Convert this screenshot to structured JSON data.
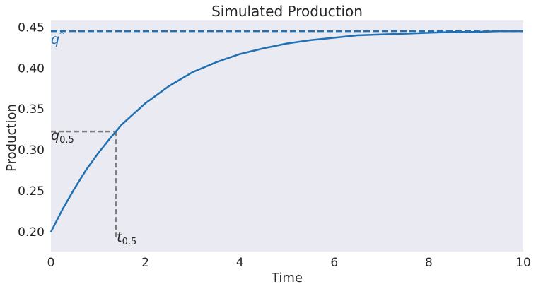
{
  "chart_data": {
    "type": "line",
    "title": "Simulated Production",
    "xlabel": "Time",
    "ylabel": "Production",
    "xlim": [
      0,
      10
    ],
    "ylim": [
      0.176,
      0.458
    ],
    "xticks": [
      "0",
      "2",
      "4",
      "6",
      "8",
      "10"
    ],
    "yticks": [
      "0.20",
      "0.25",
      "0.30",
      "0.35",
      "0.40",
      "0.45"
    ],
    "grid": false,
    "colors": {
      "line": "#2070b4",
      "dashed": "#808080",
      "background": "#eaeaf2"
    },
    "series": [
      {
        "x": [
          0,
          0.25,
          0.5,
          0.75,
          1,
          1.25,
          1.5,
          2,
          2.5,
          3,
          3.5,
          4,
          4.5,
          5,
          5.5,
          6,
          6.5,
          7,
          7.5,
          8,
          8.5,
          9,
          9.5,
          10
        ],
        "y": [
          0.2,
          0.228,
          0.253,
          0.276,
          0.296,
          0.314,
          0.331,
          0.357,
          0.378,
          0.395,
          0.407,
          0.417,
          0.424,
          0.43,
          0.434,
          0.437,
          0.44,
          0.441,
          0.442,
          0.443,
          0.444,
          0.444,
          0.445,
          0.445
        ]
      }
    ],
    "reference_lines": {
      "asymptote": {
        "y": 0.445,
        "label": "q",
        "label_sup": "*"
      },
      "half_point": {
        "x": 1.38,
        "y": 0.3225,
        "q_label": "q",
        "q_sub": "0.5",
        "t_label": "t",
        "t_sub": "0.5"
      }
    }
  }
}
